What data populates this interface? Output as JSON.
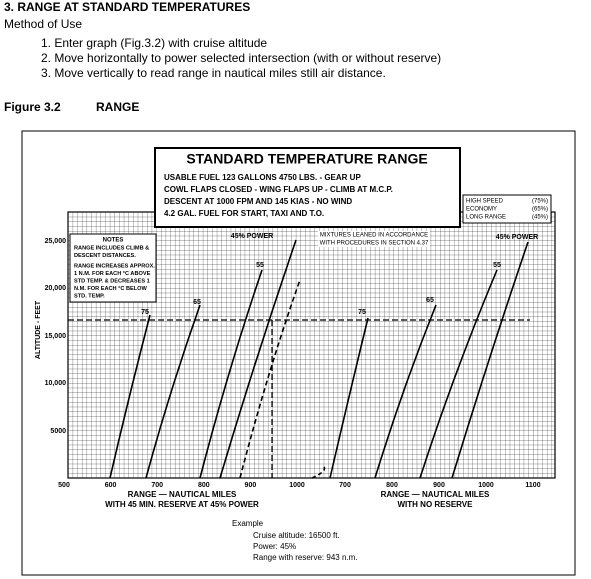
{
  "section": {
    "heading": "3. RANGE AT STANDARD TEMPERATURES",
    "subheading": "Method of Use",
    "steps": [
      "1. Enter graph (Fig.3.2) with cruise altitude",
      "2. Move horizontally to power selected intersection (with or without reserve)",
      "3. Move vertically to read range in nautical miles still air distance."
    ]
  },
  "figure": {
    "number": "Figure 3.2",
    "caption": "RANGE",
    "title": "STANDARD TEMPERATURE RANGE",
    "conditions": [
      "USABLE FUEL 123 GALLONS 4750 LBS. - GEAR UP",
      "COWL FLAPS CLOSED - WING FLAPS UP - CLIMB AT M.C.P.",
      "DESCENT AT 1000 FPM AND 145 KIAS - NO WIND",
      "4.2 GAL. FUEL FOR START, TAXI AND T.O."
    ],
    "power_legend": [
      [
        "HIGH SPEED",
        "(75%)"
      ],
      [
        "ECONOMY",
        "(65%)"
      ],
      [
        "LONG RANGE",
        "(45%)"
      ]
    ],
    "mixture_note": [
      "MIXTURES LEANED IN ACCORDANCE",
      "WITH PROCEDURES IN SECTION 4.37"
    ],
    "notes_title": "NOTES",
    "notes": [
      "RANGE INCLUDES CLIMB &",
      "DESCENT DISTANCES.",
      "RANGE INCREASES APPROX.",
      "1 N.M. FOR EACH °C ABOVE",
      "STD TEMP. & DECREASES 1",
      "N.M. FOR EACH °C BELOW",
      "STD. TEMP."
    ],
    "y_axis_label": "ALTITUDE - FEET",
    "y_ticks": [
      "25,000",
      "20,000",
      "15,000",
      "10,000",
      "5000"
    ],
    "x_ticks_left": [
      "500",
      "600",
      "700",
      "800",
      "900",
      "1000"
    ],
    "x_ticks_right": [
      "700",
      "800",
      "900",
      "1000",
      "1100"
    ],
    "curve_labels_left": [
      "75",
      "65",
      "55",
      "45% POWER"
    ],
    "curve_labels_right": [
      "75",
      "65",
      "55",
      "45% POWER"
    ],
    "x_label_left": [
      "RANGE — NAUTICAL MILES",
      "WITH 45 MIN. RESERVE AT 45% POWER"
    ],
    "x_label_right": [
      "RANGE — NAUTICAL MILES",
      "WITH NO RESERVE"
    ],
    "example": {
      "title": "Example",
      "lines": [
        "Cruise altitude: 16500 ft.",
        "Power: 45%",
        "Range with reserve: 943 n.m."
      ]
    }
  }
}
